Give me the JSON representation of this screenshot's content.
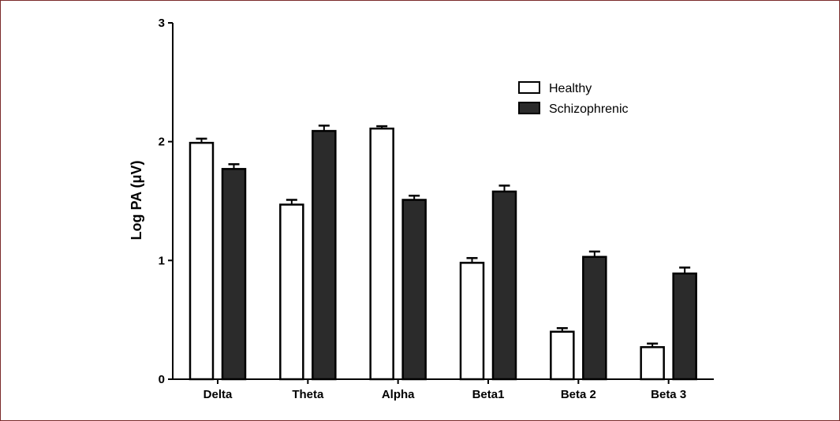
{
  "chart_data": {
    "type": "bar",
    "title": "",
    "xlabel": "",
    "ylabel": "Log PA (μV)",
    "ylim": [
      0,
      3
    ],
    "yticks": [
      "0",
      "1",
      "2",
      "3"
    ],
    "ytick_values": [
      0,
      1,
      2,
      3
    ],
    "categories": [
      "Delta",
      "Theta",
      "Alpha",
      "Beta1",
      "Beta 2",
      "Beta 3"
    ],
    "series": [
      {
        "name": "Healthy",
        "fill": "#ffffff",
        "values": [
          1.99,
          1.47,
          2.11,
          0.98,
          0.4,
          0.27
        ],
        "errors": [
          0.035,
          0.04,
          0.02,
          0.04,
          0.03,
          0.03
        ]
      },
      {
        "name": "Schizophrenic",
        "fill": "#2b2b2b",
        "values": [
          1.77,
          2.09,
          1.51,
          1.58,
          1.03,
          0.89
        ],
        "errors": [
          0.04,
          0.045,
          0.035,
          0.05,
          0.045,
          0.05
        ]
      }
    ],
    "legend": "top-right",
    "grid": false
  },
  "colors": {
    "frame_border": "#7a2a2a",
    "axis": "#000000",
    "dark_bar": "#2b2b2b"
  }
}
